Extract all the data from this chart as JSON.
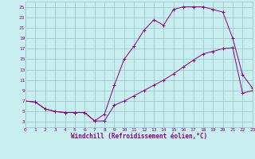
{
  "background_color": "#c8eef0",
  "grid_color": "#a0c8d0",
  "line_color": "#880088",
  "xlabel": "Windchill (Refroidissement éolien,°C)",
  "xlim": [
    0,
    23
  ],
  "ylim": [
    2,
    26
  ],
  "xticks": [
    0,
    1,
    2,
    3,
    4,
    5,
    6,
    7,
    8,
    9,
    10,
    11,
    12,
    13,
    14,
    15,
    16,
    17,
    18,
    19,
    20,
    21,
    22,
    23
  ],
  "yticks": [
    3,
    5,
    7,
    9,
    11,
    13,
    15,
    17,
    19,
    21,
    23,
    25
  ],
  "upper_curve_x": [
    0,
    1,
    2,
    3,
    4,
    5,
    6,
    7,
    8,
    9,
    10,
    11,
    12,
    13,
    14,
    15,
    16,
    17,
    18,
    19,
    20,
    21,
    22,
    23
  ],
  "upper_curve_y": [
    7.0,
    6.8,
    5.5,
    5.0,
    4.8,
    4.8,
    4.8,
    3.2,
    4.5,
    10.0,
    15.0,
    17.5,
    20.5,
    22.5,
    21.5,
    24.5,
    25.0,
    25.0,
    25.0,
    24.5,
    24.0,
    19.0,
    12.0,
    9.5
  ],
  "lower_curve_x": [
    0,
    1,
    2,
    3,
    4,
    5,
    6,
    7,
    8,
    9,
    10,
    11,
    12,
    13,
    14,
    15,
    16,
    17,
    18,
    19,
    20,
    21,
    22,
    23
  ],
  "lower_curve_y": [
    7.0,
    6.8,
    5.5,
    5.0,
    4.8,
    4.8,
    4.8,
    3.2,
    3.2,
    6.2,
    7.0,
    8.0,
    9.0,
    10.0,
    11.0,
    12.2,
    13.5,
    14.8,
    16.0,
    16.5,
    17.0,
    17.2,
    8.5,
    9.0
  ],
  "tick_fontsize": 4.5,
  "xlabel_fontsize": 5.5,
  "lw": 0.7,
  "ms": 2.5,
  "mew": 0.7
}
